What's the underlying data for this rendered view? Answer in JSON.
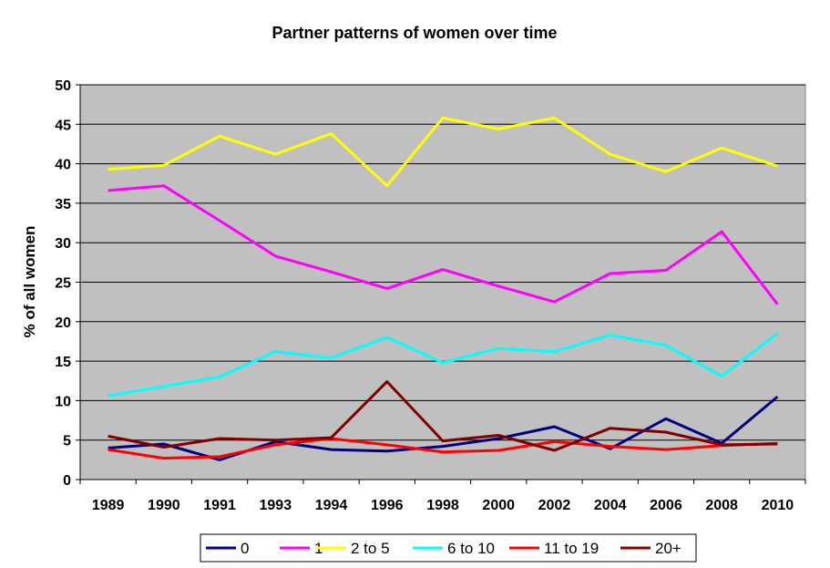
{
  "chart_data": {
    "type": "line",
    "title": "Partner patterns of women over time",
    "xlabel": "",
    "ylabel": "% of all women",
    "categories": [
      "1989",
      "1990",
      "1991",
      "1993",
      "1994",
      "1996",
      "1998",
      "2000",
      "2002",
      "2004",
      "2006",
      "2008",
      "2010"
    ],
    "ylim": [
      0,
      50
    ],
    "yticks": [
      0,
      5,
      10,
      15,
      20,
      25,
      30,
      35,
      40,
      45,
      50
    ],
    "grid": true,
    "plot_background": "#c0c0c0",
    "legend_position": "bottom",
    "series": [
      {
        "name": "0",
        "color": "#000080",
        "values": [
          4.0,
          4.5,
          2.5,
          4.8,
          3.8,
          3.6,
          4.2,
          5.2,
          6.7,
          3.9,
          7.7,
          4.6,
          10.5
        ]
      },
      {
        "name": "1",
        "color": "#ff00ff",
        "values": [
          36.6,
          37.2,
          32.8,
          28.3,
          26.3,
          24.2,
          26.6,
          24.5,
          22.5,
          26.1,
          26.5,
          31.4,
          22.2
        ]
      },
      {
        "name": "2 to 5",
        "color": "#ffff00",
        "values": [
          39.3,
          39.8,
          43.5,
          41.2,
          43.8,
          37.2,
          45.8,
          44.4,
          45.8,
          41.2,
          39.0,
          42.0,
          39.7
        ]
      },
      {
        "name": "6 to 10",
        "color": "#00ffff",
        "values": [
          10.6,
          11.8,
          13.0,
          16.2,
          15.4,
          18.0,
          14.8,
          16.6,
          16.2,
          18.3,
          17.0,
          13.1,
          18.5
        ]
      },
      {
        "name": "11 to 19",
        "color": "#ff0000",
        "values": [
          3.8,
          2.7,
          2.9,
          4.4,
          5.2,
          4.4,
          3.5,
          3.7,
          4.8,
          4.2,
          3.8,
          4.3,
          4.6
        ]
      },
      {
        "name": "20+",
        "color": "#800000",
        "values": [
          5.5,
          4.1,
          5.2,
          5.0,
          5.3,
          12.4,
          4.9,
          5.6,
          3.7,
          6.5,
          6.0,
          4.4,
          4.5
        ]
      }
    ]
  }
}
